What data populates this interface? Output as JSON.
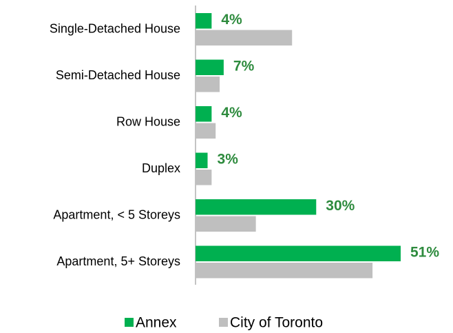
{
  "chart_data": {
    "type": "hbar",
    "categories": [
      "Single-Detached House",
      "Semi-Detached House",
      "Row House",
      "Duplex",
      "Apartment, < 5 Storeys",
      "Apartment, 5+ Storeys"
    ],
    "series": [
      {
        "name": "Annex",
        "color": "#00b050",
        "values": [
          4,
          7,
          4,
          3,
          30,
          51
        ],
        "value_labels": [
          "4%",
          "7%",
          "4%",
          "3%",
          "30%",
          "51%"
        ]
      },
      {
        "name": "City of Toronto",
        "color": "#bfbfbf",
        "values": [
          24,
          6,
          5,
          4,
          15,
          44
        ]
      }
    ],
    "legend": "bottom"
  }
}
